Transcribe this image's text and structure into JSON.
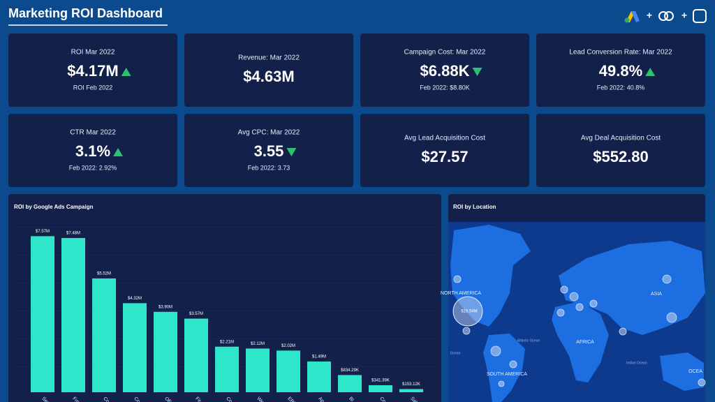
{
  "header": {
    "title": "Marketing ROI Dashboard"
  },
  "kpis": [
    {
      "title": "ROI Mar 2022",
      "value": "$4.17M",
      "trend": "up",
      "sub": "ROI Feb 2022"
    },
    {
      "title": "Revenue: Mar 2022",
      "value": "$4.63M"
    },
    {
      "title": "Campaign Cost: Mar 2022",
      "value": "$6.88K",
      "trend": "down",
      "sub": "Feb 2022: $8.80K"
    },
    {
      "title": "Lead Conversion Rate: Mar 2022",
      "value": "49.8%",
      "trend": "up",
      "sub": "Feb 2022: 40.8%"
    },
    {
      "title": "CTR Mar 2022",
      "value": "3.1%",
      "trend": "up",
      "sub": "Feb 2022: 2.92%"
    },
    {
      "title": "Avg CPC: Mar 2022",
      "value": "3.55",
      "trend": "down",
      "sub": "Feb 2022: 3.73"
    },
    {
      "title": "Avg Lead Acquisition Cost",
      "value": "$27.57"
    },
    {
      "title": "Avg Deal Acquisition Cost",
      "value": "$552.80"
    }
  ],
  "chart_data": {
    "type": "bar",
    "title": "ROI by Google Ads Campaign",
    "categories": [
      "Sea",
      "Fro",
      "Co",
      "Co",
      "OE",
      "Fir",
      "Co",
      "We",
      "ERI",
      "Ap",
      "Bl",
      "Co",
      "Sal"
    ],
    "values": [
      7570000,
      7480000,
      5520000,
      4320000,
      3900000,
      3570000,
      2210000,
      2120000,
      2020000,
      1490000,
      834290,
      341390,
      153120
    ],
    "value_labels": [
      "$7.57M",
      "$7.48M",
      "$5.52M",
      "$4.32M",
      "$3.90M",
      "$3.57M",
      "$2.21M",
      "$2.12M",
      "$2.02M",
      "$1.49M",
      "$834.29K",
      "$341.39K",
      "$153.12K"
    ],
    "color": "#2ee6c9",
    "ylim": [
      0,
      8700000
    ]
  },
  "map": {
    "title": "ROI by Location",
    "labels": [
      "NORTH AMERICA",
      "SOUTH AMERICA",
      "AFRICA",
      "ASIA",
      "OCEA",
      "Atlantic Ocean",
      "Indian Ocean",
      "Ocean"
    ],
    "bubble_value": 16540000,
    "bubble_label": "$16.54M"
  }
}
